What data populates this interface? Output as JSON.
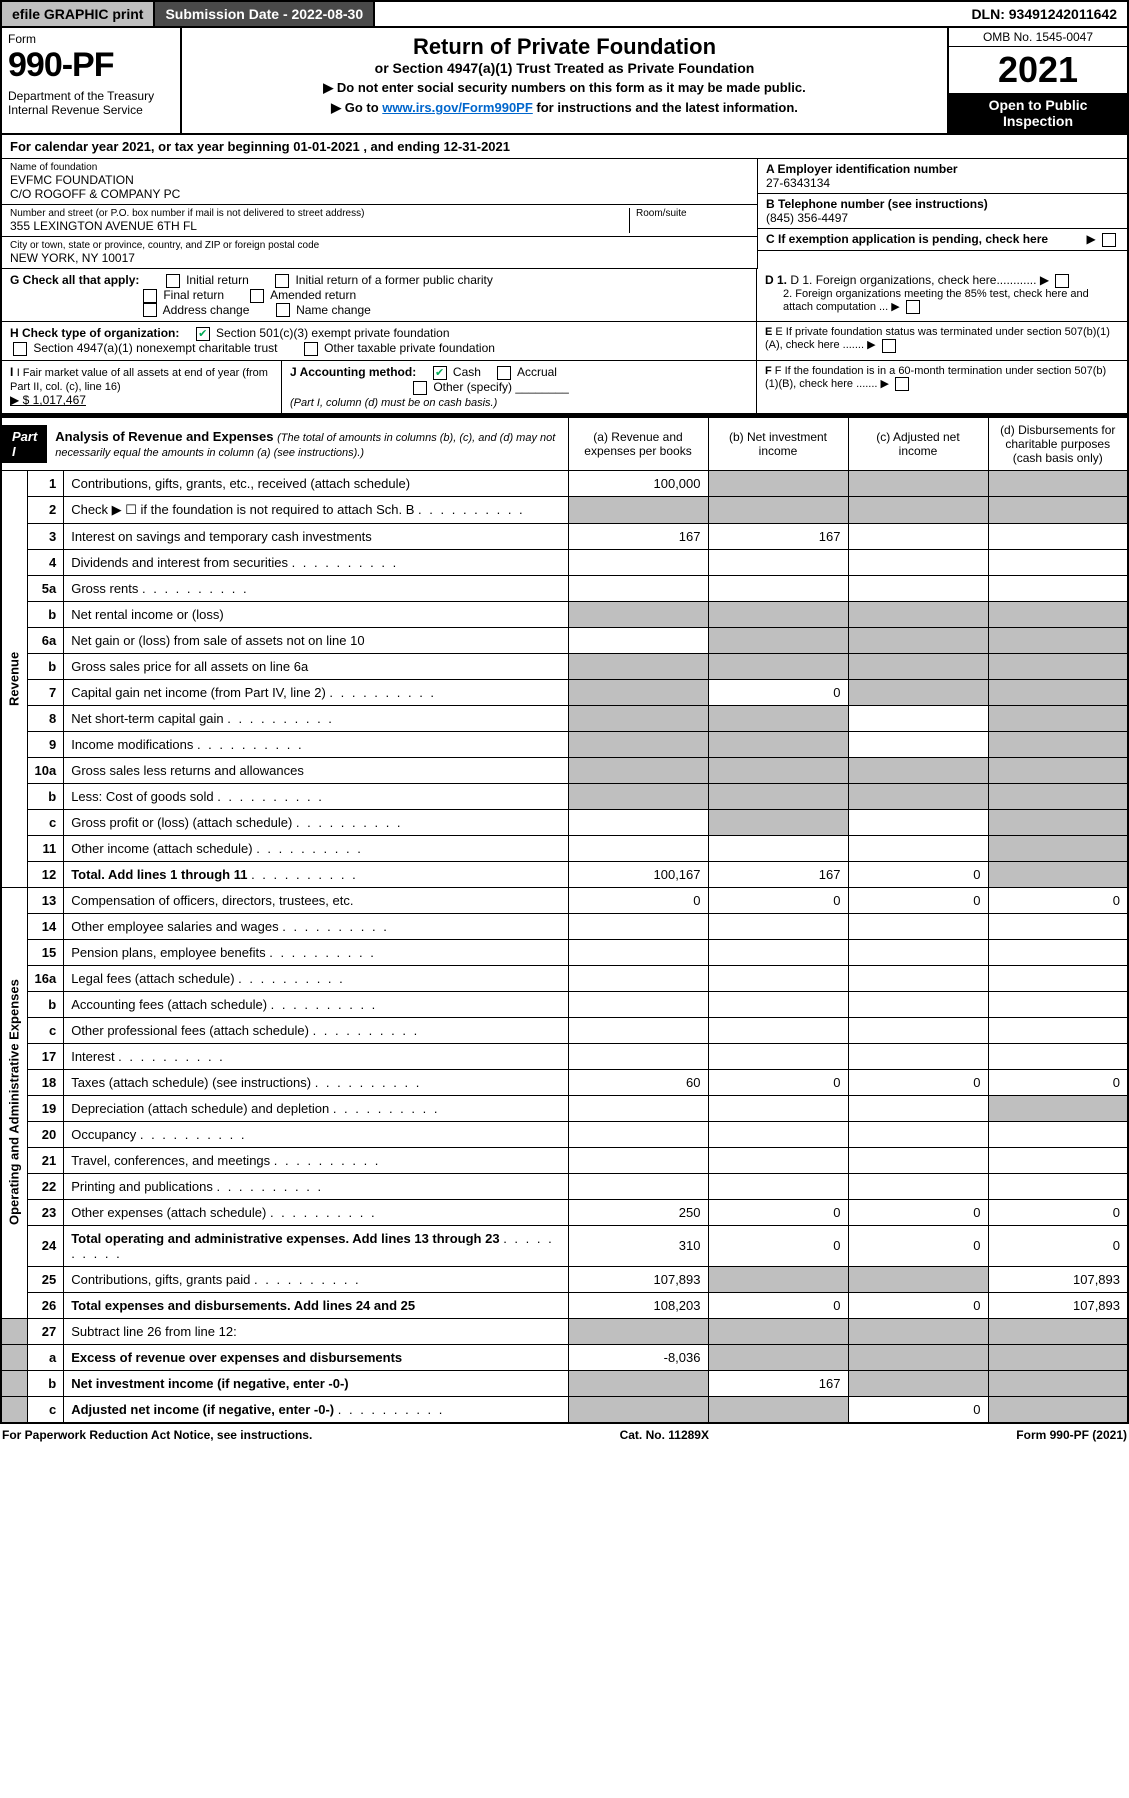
{
  "topbar": {
    "efile": "efile GRAPHIC print",
    "submission": "Submission Date - 2022-08-30",
    "dln": "DLN: 93491242011642"
  },
  "header": {
    "form_label": "Form",
    "form_num": "990-PF",
    "dept1": "Department of the Treasury",
    "dept2": "Internal Revenue Service",
    "title": "Return of Private Foundation",
    "subtitle": "or Section 4947(a)(1) Trust Treated as Private Foundation",
    "note1": "▶ Do not enter social security numbers on this form as it may be made public.",
    "note2a": "▶ Go to ",
    "note2_link": "www.irs.gov/Form990PF",
    "note2b": " for instructions and the latest information.",
    "omb": "OMB No. 1545-0047",
    "year": "2021",
    "inspect": "Open to Public Inspection"
  },
  "cal": "For calendar year 2021, or tax year beginning 01-01-2021                     , and ending 12-31-2021",
  "id": {
    "name_lbl": "Name of foundation",
    "name1": "EVFMC FOUNDATION",
    "name2": "C/O ROGOFF & COMPANY PC",
    "addr_lbl": "Number and street (or P.O. box number if mail is not delivered to street address)",
    "addr": "355 LEXINGTON AVENUE 6TH FL",
    "room_lbl": "Room/suite",
    "city_lbl": "City or town, state or province, country, and ZIP or foreign postal code",
    "city": "NEW YORK, NY  10017",
    "a_lbl": "A Employer identification number",
    "a_val": "27-6343134",
    "b_lbl": "B Telephone number (see instructions)",
    "b_val": "(845) 356-4497",
    "c_lbl": "C If exemption application is pending, check here",
    "d1": "D 1. Foreign organizations, check here............",
    "d2": "2. Foreign organizations meeting the 85% test, check here and attach computation ...",
    "e": "E  If private foundation status was terminated under section 507(b)(1)(A), check here .......",
    "f": "F  If the foundation is in a 60-month termination under section 507(b)(1)(B), check here ......."
  },
  "g": {
    "lbl": "G Check all that apply:",
    "opts": [
      "Initial return",
      "Initial return of a former public charity",
      "Final return",
      "Amended return",
      "Address change",
      "Name change"
    ]
  },
  "h": {
    "lbl": "H Check type of organization:",
    "o1": "Section 501(c)(3) exempt private foundation",
    "o2": "Section 4947(a)(1) nonexempt charitable trust",
    "o3": "Other taxable private foundation"
  },
  "i": {
    "lbl": "I Fair market value of all assets at end of year (from Part II, col. (c), line 16)",
    "val": "▶ $  1,017,467"
  },
  "j": {
    "lbl": "J Accounting method:",
    "o1": "Cash",
    "o2": "Accrual",
    "o3": "Other (specify)",
    "note": "(Part I, column (d) must be on cash basis.)"
  },
  "part1": {
    "tag": "Part I",
    "title": "Analysis of Revenue and Expenses",
    "note": "(The total of amounts in columns (b), (c), and (d) may not necessarily equal the amounts in column (a) (see instructions).)",
    "cols": {
      "a": "(a)  Revenue and expenses per books",
      "b": "(b)  Net investment income",
      "c": "(c)  Adjusted net income",
      "d": "(d)  Disbursements for charitable purposes (cash basis only)"
    }
  },
  "rows": [
    {
      "ln": "1",
      "desc": "Contributions, gifts, grants, etc., received (attach schedule)",
      "a": "100,000",
      "grey": [
        "b",
        "c",
        "d"
      ]
    },
    {
      "ln": "2",
      "desc": "Check ▶ ☐ if the foundation is not required to attach Sch. B",
      "dotted": true,
      "grey": [
        "a",
        "b",
        "c",
        "d"
      ]
    },
    {
      "ln": "3",
      "desc": "Interest on savings and temporary cash investments",
      "a": "167",
      "b": "167"
    },
    {
      "ln": "4",
      "desc": "Dividends and interest from securities",
      "dotted": true
    },
    {
      "ln": "5a",
      "desc": "Gross rents",
      "dotted": true
    },
    {
      "ln": "b",
      "desc": "Net rental income or (loss)",
      "nob": true,
      "grey": [
        "a",
        "b",
        "c",
        "d"
      ]
    },
    {
      "ln": "6a",
      "desc": "Net gain or (loss) from sale of assets not on line 10",
      "grey": [
        "b",
        "c",
        "d"
      ]
    },
    {
      "ln": "b",
      "desc": "Gross sales price for all assets on line 6a",
      "nob": true,
      "grey": [
        "a",
        "b",
        "c",
        "d"
      ]
    },
    {
      "ln": "7",
      "desc": "Capital gain net income (from Part IV, line 2)",
      "dotted": true,
      "b": "0",
      "grey": [
        "a",
        "c",
        "d"
      ]
    },
    {
      "ln": "8",
      "desc": "Net short-term capital gain",
      "dotted": true,
      "grey": [
        "a",
        "b",
        "d"
      ]
    },
    {
      "ln": "9",
      "desc": "Income modifications",
      "dotted": true,
      "grey": [
        "a",
        "b",
        "d"
      ]
    },
    {
      "ln": "10a",
      "desc": "Gross sales less returns and allowances",
      "nob": true,
      "grey": [
        "a",
        "b",
        "c",
        "d"
      ]
    },
    {
      "ln": "b",
      "desc": "Less: Cost of goods sold",
      "dotted": true,
      "nob": true,
      "grey": [
        "a",
        "b",
        "c",
        "d"
      ]
    },
    {
      "ln": "c",
      "desc": "Gross profit or (loss) (attach schedule)",
      "dotted": true,
      "grey": [
        "b",
        "d"
      ]
    },
    {
      "ln": "11",
      "desc": "Other income (attach schedule)",
      "dotted": true,
      "grey": [
        "d"
      ]
    },
    {
      "ln": "12",
      "desc": "Total. Add lines 1 through 11",
      "dotted": true,
      "bold": true,
      "a": "100,167",
      "b": "167",
      "c": "0",
      "grey": [
        "d"
      ]
    }
  ],
  "exp_rows": [
    {
      "ln": "13",
      "desc": "Compensation of officers, directors, trustees, etc.",
      "a": "0",
      "b": "0",
      "c": "0",
      "d": "0"
    },
    {
      "ln": "14",
      "desc": "Other employee salaries and wages",
      "dotted": true
    },
    {
      "ln": "15",
      "desc": "Pension plans, employee benefits",
      "dotted": true
    },
    {
      "ln": "16a",
      "desc": "Legal fees (attach schedule)",
      "dotted": true
    },
    {
      "ln": "b",
      "desc": "Accounting fees (attach schedule)",
      "dotted": true
    },
    {
      "ln": "c",
      "desc": "Other professional fees (attach schedule)",
      "dotted": true
    },
    {
      "ln": "17",
      "desc": "Interest",
      "dotted": true
    },
    {
      "ln": "18",
      "desc": "Taxes (attach schedule) (see instructions)",
      "dotted": true,
      "a": "60",
      "b": "0",
      "c": "0",
      "d": "0"
    },
    {
      "ln": "19",
      "desc": "Depreciation (attach schedule) and depletion",
      "dotted": true,
      "grey": [
        "d"
      ]
    },
    {
      "ln": "20",
      "desc": "Occupancy",
      "dotted": true
    },
    {
      "ln": "21",
      "desc": "Travel, conferences, and meetings",
      "dotted": true
    },
    {
      "ln": "22",
      "desc": "Printing and publications",
      "dotted": true
    },
    {
      "ln": "23",
      "desc": "Other expenses (attach schedule)",
      "dotted": true,
      "a": "250",
      "b": "0",
      "c": "0",
      "d": "0"
    },
    {
      "ln": "24",
      "desc": "Total operating and administrative expenses. Add lines 13 through 23",
      "dotted": true,
      "bold": true,
      "a": "310",
      "b": "0",
      "c": "0",
      "d": "0"
    },
    {
      "ln": "25",
      "desc": "Contributions, gifts, grants paid",
      "dotted": true,
      "a": "107,893",
      "d": "107,893",
      "grey": [
        "b",
        "c"
      ]
    },
    {
      "ln": "26",
      "desc": "Total expenses and disbursements. Add lines 24 and 25",
      "bold": true,
      "a": "108,203",
      "b": "0",
      "c": "0",
      "d": "107,893"
    }
  ],
  "net_rows": [
    {
      "ln": "27",
      "desc": "Subtract line 26 from line 12:",
      "bold": false,
      "grey": [
        "a",
        "b",
        "c",
        "d"
      ]
    },
    {
      "ln": "a",
      "desc": "Excess of revenue over expenses and disbursements",
      "bold": true,
      "a": "-8,036",
      "grey": [
        "b",
        "c",
        "d"
      ]
    },
    {
      "ln": "b",
      "desc": "Net investment income (if negative, enter -0-)",
      "bold": true,
      "b": "167",
      "grey": [
        "a",
        "c",
        "d"
      ]
    },
    {
      "ln": "c",
      "desc": "Adjusted net income (if negative, enter -0-)",
      "dotted": true,
      "bold": true,
      "c": "0",
      "grey": [
        "a",
        "b",
        "d"
      ]
    }
  ],
  "vlabels": {
    "rev": "Revenue",
    "exp": "Operating and Administrative Expenses"
  },
  "footer": {
    "left": "For Paperwork Reduction Act Notice, see instructions.",
    "mid": "Cat. No. 11289X",
    "right": "Form 990-PF (2021)"
  }
}
